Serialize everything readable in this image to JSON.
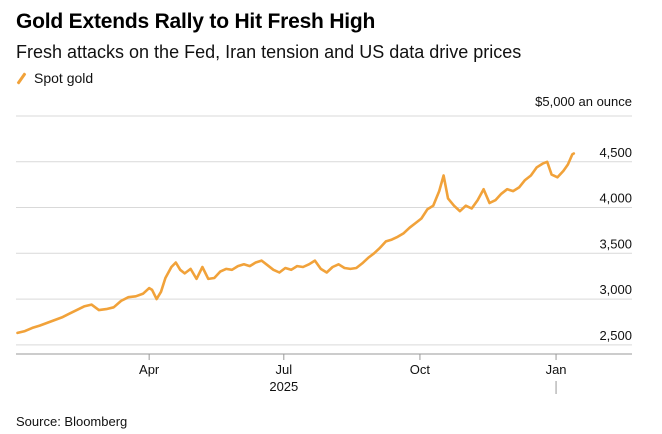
{
  "title": "Gold Extends Rally to Hit Fresh High",
  "subtitle": "Fresh attacks on the Fed, Iran tension and US data drive prices",
  "source": "Source: Bloomberg",
  "colors": {
    "line": "#f1a23a",
    "grid": "#d9d9d9",
    "axis": "#999999"
  },
  "chart_data": {
    "type": "line",
    "title": "Gold Extends Rally to Hit Fresh High",
    "subtitle": "Fresh attacks on the Fed, Iran tension and US data drive prices",
    "unit_label": "$5,000 an ounce",
    "ylim": [
      2400,
      5000
    ],
    "yticks": [
      {
        "value": 2500,
        "label": "2,500"
      },
      {
        "value": 3000,
        "label": "3,000"
      },
      {
        "value": 3500,
        "label": "3,500"
      },
      {
        "value": 4000,
        "label": "4,000"
      },
      {
        "value": 4500,
        "label": "4,500"
      }
    ],
    "xlim": [
      "2025-01-01",
      "2026-01-28"
    ],
    "xticks": [
      {
        "value": "2025-04-01",
        "label": "Apr"
      },
      {
        "value": "2025-07-01",
        "label": "Jul"
      },
      {
        "value": "2025-10-01",
        "label": "Oct"
      },
      {
        "value": "2026-01-01",
        "label": "Jan"
      }
    ],
    "year_labels": [
      {
        "value": "2025-07-01",
        "label": "2025"
      }
    ],
    "year_separators": [
      "2026-01-01"
    ],
    "grid": true,
    "legend": "top-left",
    "series": [
      {
        "name": "Spot gold",
        "x": [
          "2025-01-02",
          "2025-01-07",
          "2025-01-12",
          "2025-01-17",
          "2025-01-22",
          "2025-01-27",
          "2025-02-01",
          "2025-02-06",
          "2025-02-11",
          "2025-02-16",
          "2025-02-21",
          "2025-02-26",
          "2025-03-03",
          "2025-03-08",
          "2025-03-13",
          "2025-03-18",
          "2025-03-23",
          "2025-03-28",
          "2025-04-01",
          "2025-04-03",
          "2025-04-06",
          "2025-04-09",
          "2025-04-12",
          "2025-04-16",
          "2025-04-19",
          "2025-04-22",
          "2025-04-25",
          "2025-04-29",
          "2025-05-03",
          "2025-05-07",
          "2025-05-11",
          "2025-05-15",
          "2025-05-19",
          "2025-05-23",
          "2025-05-27",
          "2025-05-31",
          "2025-06-04",
          "2025-06-08",
          "2025-06-12",
          "2025-06-16",
          "2025-06-20",
          "2025-06-24",
          "2025-06-28",
          "2025-07-02",
          "2025-07-06",
          "2025-07-10",
          "2025-07-14",
          "2025-07-18",
          "2025-07-22",
          "2025-07-26",
          "2025-07-30",
          "2025-08-03",
          "2025-08-07",
          "2025-08-11",
          "2025-08-15",
          "2025-08-19",
          "2025-08-23",
          "2025-08-27",
          "2025-08-31",
          "2025-09-04",
          "2025-09-08",
          "2025-09-12",
          "2025-09-16",
          "2025-09-20",
          "2025-09-24",
          "2025-09-28",
          "2025-10-02",
          "2025-10-06",
          "2025-10-10",
          "2025-10-14",
          "2025-10-17",
          "2025-10-20",
          "2025-10-24",
          "2025-10-28",
          "2025-11-01",
          "2025-11-05",
          "2025-11-09",
          "2025-11-13",
          "2025-11-17",
          "2025-11-21",
          "2025-11-25",
          "2025-11-29",
          "2025-12-03",
          "2025-12-07",
          "2025-12-11",
          "2025-12-15",
          "2025-12-19",
          "2025-12-23",
          "2025-12-26",
          "2025-12-29",
          "2026-01-02",
          "2026-01-06",
          "2026-01-09",
          "2026-01-12",
          "2026-01-13"
        ],
        "y": [
          2630,
          2650,
          2685,
          2710,
          2740,
          2770,
          2800,
          2840,
          2880,
          2920,
          2940,
          2880,
          2890,
          2910,
          2980,
          3020,
          3030,
          3060,
          3120,
          3100,
          3000,
          3080,
          3230,
          3350,
          3400,
          3320,
          3280,
          3330,
          3220,
          3350,
          3220,
          3230,
          3300,
          3330,
          3320,
          3360,
          3380,
          3360,
          3400,
          3420,
          3370,
          3320,
          3290,
          3340,
          3320,
          3360,
          3350,
          3380,
          3420,
          3330,
          3290,
          3350,
          3380,
          3340,
          3330,
          3340,
          3390,
          3450,
          3500,
          3560,
          3630,
          3650,
          3680,
          3720,
          3780,
          3830,
          3880,
          3980,
          4020,
          4180,
          4350,
          4100,
          4020,
          3960,
          4020,
          3990,
          4080,
          4200,
          4050,
          4080,
          4150,
          4200,
          4180,
          4220,
          4300,
          4350,
          4440,
          4480,
          4500,
          4360,
          4330,
          4400,
          4470,
          4580,
          4590
        ]
      }
    ]
  }
}
